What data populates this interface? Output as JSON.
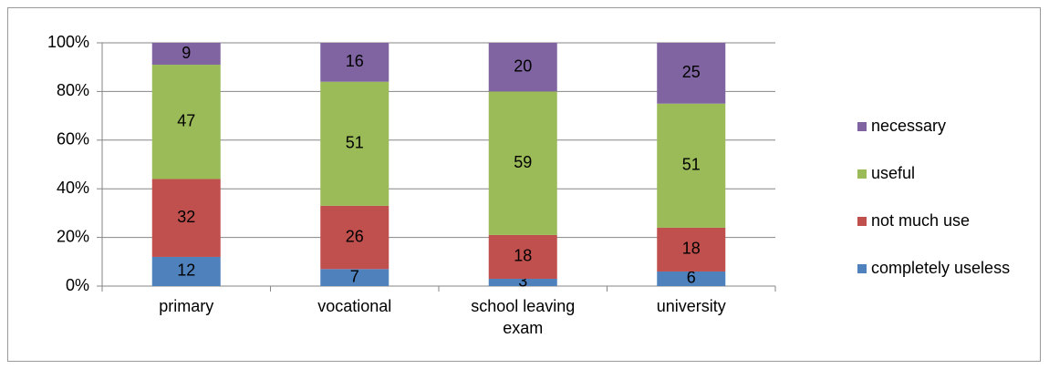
{
  "chart_data": {
    "type": "stacked_bar",
    "categories": [
      "primary",
      "vocational",
      "school leaving exam",
      "university"
    ],
    "series": [
      {
        "name": "completely useless",
        "color": "#4f81bd",
        "values": [
          12,
          7,
          3,
          6
        ]
      },
      {
        "name": "not much use",
        "color": "#c0504d",
        "values": [
          32,
          26,
          18,
          18
        ]
      },
      {
        "name": "useful",
        "color": "#9bbb59",
        "values": [
          47,
          51,
          59,
          51
        ]
      },
      {
        "name": "necessary",
        "color": "#8064a2",
        "values": [
          9,
          16,
          20,
          25
        ]
      }
    ],
    "ylim": [
      0,
      100
    ],
    "yticks": [
      {
        "value": 0,
        "label": "0%"
      },
      {
        "value": 20,
        "label": "20%"
      },
      {
        "value": 40,
        "label": "40%"
      },
      {
        "value": 60,
        "label": "60%"
      },
      {
        "value": 80,
        "label": "80%"
      },
      {
        "value": 100,
        "label": "100%"
      }
    ],
    "grid": true,
    "legend": "right"
  }
}
